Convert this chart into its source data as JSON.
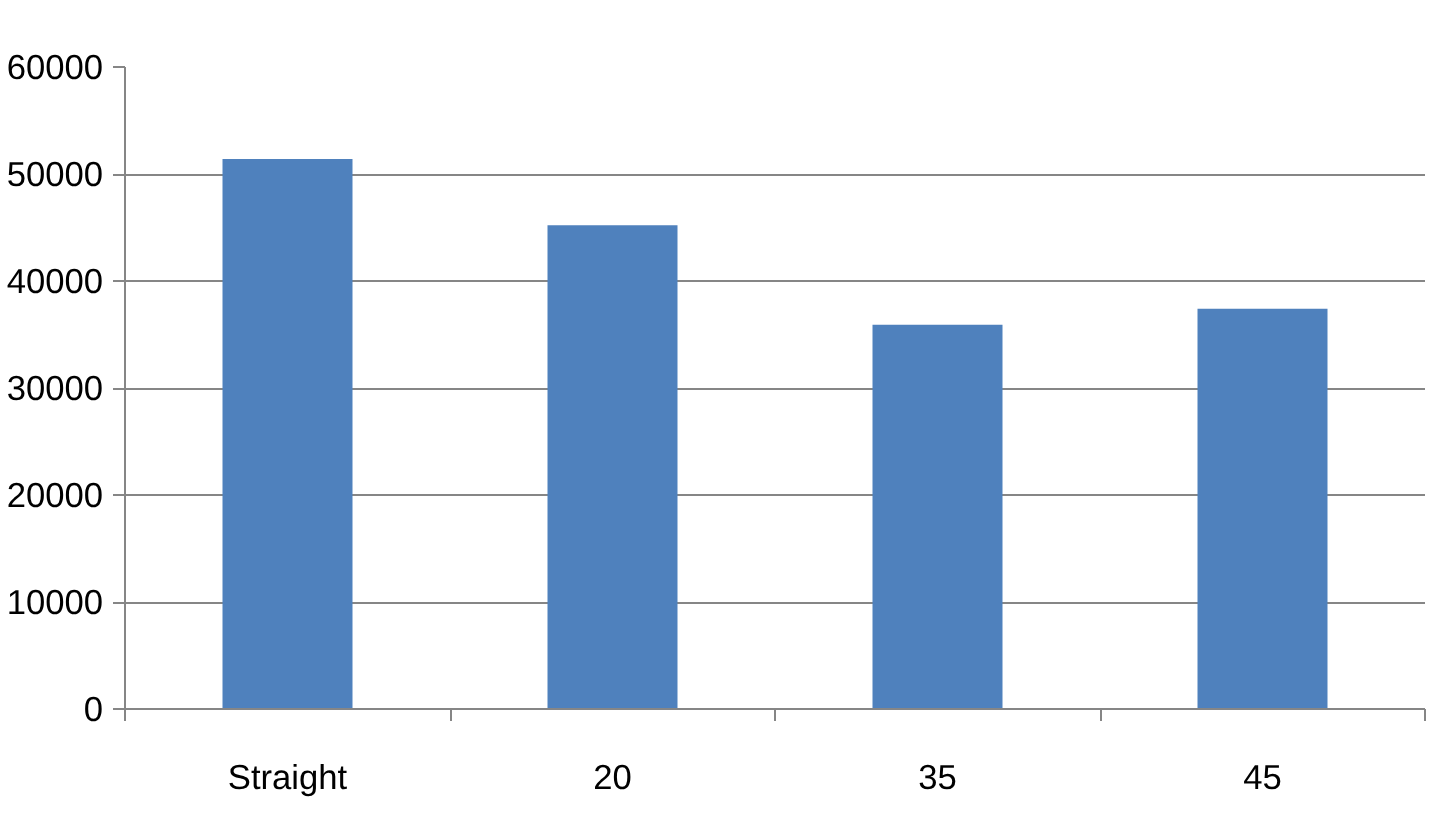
{
  "chart_data": {
    "type": "bar",
    "categories": [
      "Straight",
      "20",
      "35",
      "45"
    ],
    "values": [
      51400,
      45200,
      35900,
      37400
    ],
    "color": "#4f81bd",
    "ylim": [
      0,
      60000
    ],
    "yticks": [
      0,
      10000,
      20000,
      30000,
      40000,
      50000,
      60000
    ],
    "grid": "y"
  }
}
